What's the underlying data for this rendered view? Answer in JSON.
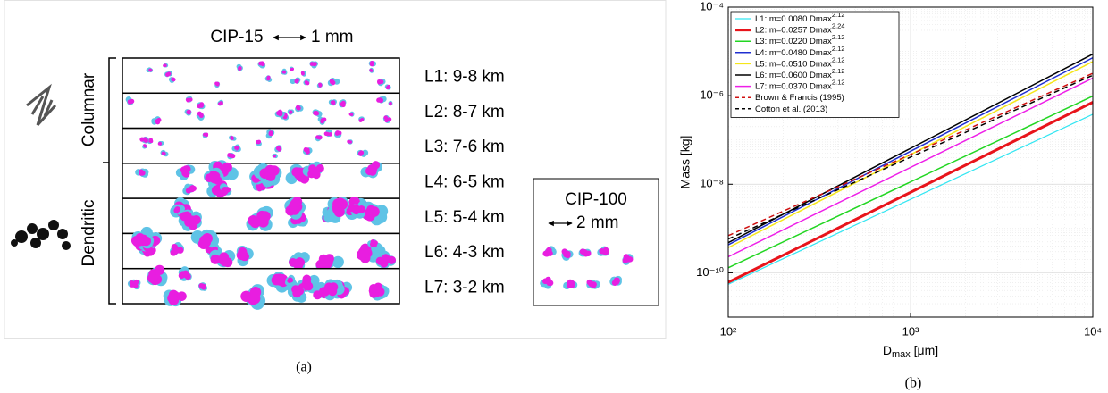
{
  "panel_a": {
    "cip15": {
      "title": "CIP-15",
      "scale": "1 mm"
    },
    "levels": [
      "L1: 9-8 km",
      "L2: 8-7 km",
      "L3: 7-6 km",
      "L4: 6-5 km",
      "L5: 5-4 km",
      "L6: 4-3 km",
      "L7: 3-2 km"
    ],
    "habits": [
      "Columnar",
      "Dendritic"
    ],
    "cip100": {
      "title": "CIP-100",
      "scale": "2 mm"
    },
    "caption": "(a)"
  },
  "chart_data": {
    "type": "line",
    "caption": "(b)",
    "x_label": {
      "main": "D",
      "sub": "max",
      "rest": " [μm]"
    },
    "y_label": "Mass [kg]",
    "xscale": "log",
    "yscale": "log",
    "grid": true,
    "minor_grid": true,
    "legend": "upper-left",
    "xlim": [
      100,
      10000
    ],
    "ylim": [
      1e-11,
      0.0001
    ],
    "xticks": [
      {
        "value": 100,
        "label": "10²"
      },
      {
        "value": 1000,
        "label": "10³"
      },
      {
        "value": 10000,
        "label": "10⁴"
      }
    ],
    "yticks": [
      {
        "value": 1e-10,
        "label": "10⁻¹⁰"
      },
      {
        "value": 1e-08,
        "label": "10⁻⁸"
      },
      {
        "value": 1e-06,
        "label": "10⁻⁶"
      },
      {
        "value": 0.0001,
        "label": "10⁻⁴"
      }
    ],
    "x": [
      100,
      10000
    ],
    "series": [
      {
        "name": "L1: m=0.0080 Dmax",
        "exponent": "2.12",
        "color": "#33e6f2",
        "linewidth": 1.2,
        "values": [
          5.5e-11,
          3.8e-07
        ]
      },
      {
        "name": "L2: m=0.0257 Dmax",
        "exponent": "2.24",
        "color": "#e8141b",
        "linewidth": 3,
        "values": [
          6.1e-11,
          7.1e-07
        ]
      },
      {
        "name": "L3: m=0.0220 Dmax",
        "exponent": "2.12",
        "color": "#22d622",
        "linewidth": 1.5,
        "values": [
          1.3e-10,
          9.8e-07
        ]
      },
      {
        "name": "L4: m=0.0480 Dmax",
        "exponent": "2.12",
        "color": "#1f2fd0",
        "linewidth": 1.5,
        "values": [
          4.3e-10,
          7.2e-06
        ]
      },
      {
        "name": "L5: m=0.0510 Dmax",
        "exponent": "2.12",
        "color": "#f5e61a",
        "linewidth": 1.5,
        "values": [
          3.7e-10,
          5.9e-06
        ]
      },
      {
        "name": "L6: m=0.0600 Dmax",
        "exponent": "2.12",
        "color": "#000000",
        "linewidth": 1.5,
        "values": [
          4.8e-10,
          8.7e-06
        ]
      },
      {
        "name": "L7: m=0.0370 Dmax",
        "exponent": "2.12",
        "color": "#ee1ee8",
        "linewidth": 1.5,
        "values": [
          2.3e-10,
          2.5e-06
        ]
      },
      {
        "name": "Brown & Francis (1995)",
        "color": "#d01010",
        "linewidth": 1.5,
        "dash": true,
        "values": [
          6.9e-10,
          3.2e-06
        ]
      },
      {
        "name": "Cotton et al. (2013)",
        "color": "#000000",
        "linewidth": 1.5,
        "dash": true,
        "values": [
          5.8e-10,
          2.9e-06
        ]
      }
    ]
  }
}
